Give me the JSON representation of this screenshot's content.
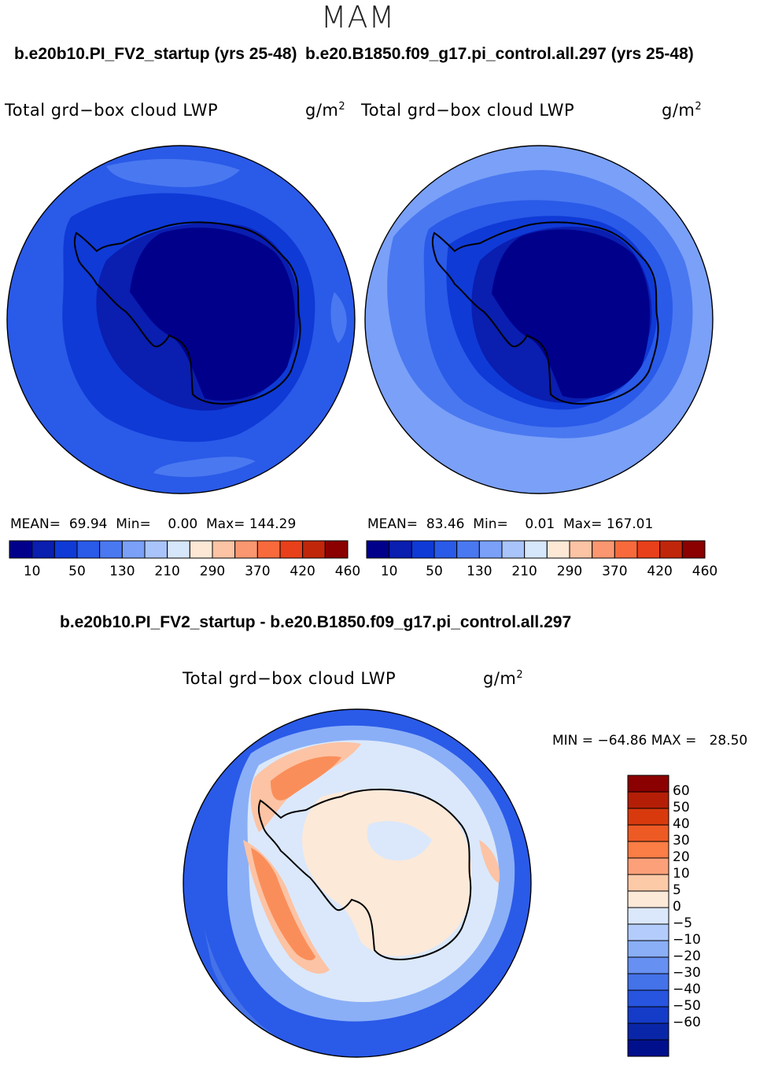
{
  "season": "MAM",
  "panels": [
    {
      "case_title": "b.e20b10.PI_FV2_startup (yrs 25-48)",
      "field": "Total grd−box cloud LWP",
      "units": "g/m",
      "units_exp": "2",
      "stats": {
        "mean_label": "MEAN=",
        "mean": "69.94",
        "min_label": "Min=",
        "min": "0.00",
        "max_label": "Max=",
        "max": "144.29"
      }
    },
    {
      "case_title": "b.e20.B1850.f09_g17.pi_control.all.297 (yrs 25-48)",
      "field": "Total grd−box cloud LWP",
      "units": "g/m",
      "units_exp": "2",
      "stats": {
        "mean_label": "MEAN=",
        "mean": "83.46",
        "min_label": "Min=",
        "min": "0.01",
        "max_label": "Max=",
        "max": "167.01"
      }
    }
  ],
  "abs_colorbar": {
    "colors": [
      "#00008b",
      "#0a1eb0",
      "#0f3ad6",
      "#2a5ae8",
      "#4a78f0",
      "#7aa0f8",
      "#a9c4fb",
      "#d6e6fb",
      "#fde8d6",
      "#fcc3a4",
      "#fb9770",
      "#f86a3c",
      "#e8401a",
      "#c0260a",
      "#8b0000"
    ],
    "labels": [
      "10",
      "50",
      "130",
      "210",
      "290",
      "370",
      "420",
      "460"
    ]
  },
  "diff": {
    "title": "b.e20b10.PI_FV2_startup - b.e20.B1850.f09_g17.pi_control.all.297",
    "field": "Total grd−box cloud LWP",
    "units": "g/m",
    "units_exp": "2",
    "minmax": "MIN = −64.86 MAX =   28.50"
  },
  "diff_colorbar": {
    "colors": [
      "#8b0000",
      "#b41e06",
      "#d83a0e",
      "#ee5a24",
      "#fa7e45",
      "#fca07a",
      "#fdcaa8",
      "#fde9d8",
      "#dbe8fb",
      "#b3ccfb",
      "#8aaff7",
      "#6690f1",
      "#4472e9",
      "#2755df",
      "#153cc8",
      "#0a26a8",
      "#00108c"
    ],
    "labels": [
      "60",
      "50",
      "40",
      "30",
      "20",
      "10",
      "5",
      "0",
      "−5",
      "−10",
      "−20",
      "−30",
      "−40",
      "−50",
      "−60"
    ]
  },
  "map_colors": {
    "lev1": "#00008b",
    "lev2": "#0a1eb0",
    "lev3": "#0f3ad6",
    "lev4": "#2a5ae8",
    "lev5": "#4a78f0",
    "lev6": "#7aa0f8",
    "diff_neg_strong": "#2a5ae8",
    "diff_neg_mid": "#4472e9",
    "diff_neg_weak": "#8aaff7",
    "diff_near_zero_neg": "#dbe8fb",
    "diff_near_zero_pos": "#fde9d8",
    "diff_pos_weak": "#fcc3a4",
    "diff_pos_mid": "#fa8e5a"
  }
}
